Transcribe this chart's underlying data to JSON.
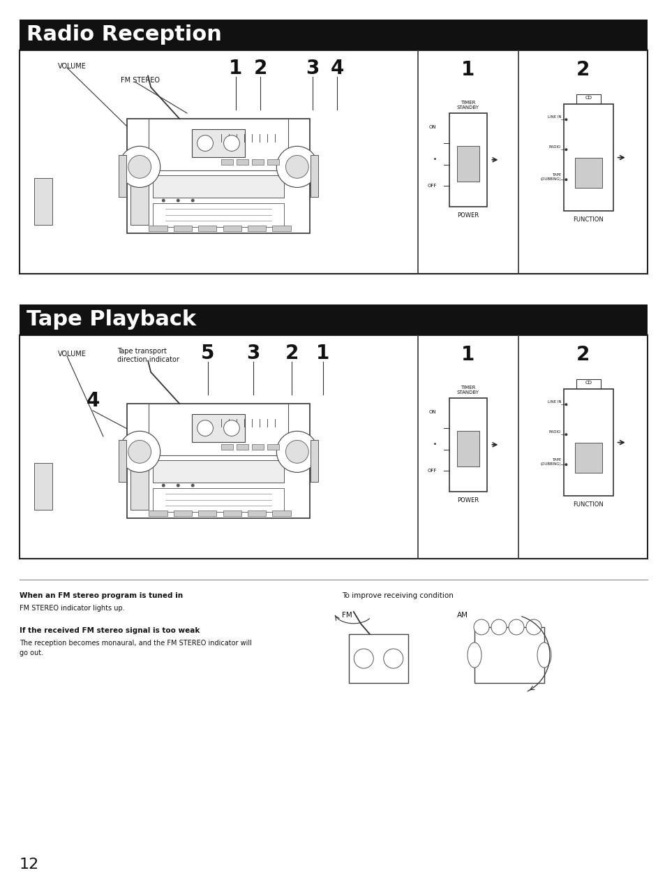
{
  "page_bg": "#ffffff",
  "header1_bg": "#111111",
  "header1_text": "Radio Reception",
  "header2_bg": "#111111",
  "header2_text": "Tape Playback",
  "header_text_color": "#ffffff",
  "header_fontsize": 22,
  "note_bold1": "When an FM stereo program is tuned in",
  "note_text1": "FM STEREO indicator lights up.",
  "note_bold2": "If the received FM stereo signal is too weak",
  "note_text2": "The reception becomes monaural, and the FM STEREO indicator will\ngo out.",
  "improve_title": "To improve receiving condition",
  "fm_label": "FM",
  "am_label": "AM",
  "page_number": "12"
}
